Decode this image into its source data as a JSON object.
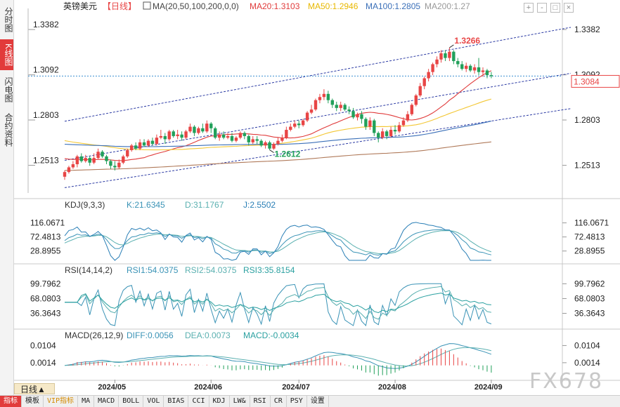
{
  "side_tabs": [
    "分时图",
    "K线图",
    "闪电图",
    "合约资料"
  ],
  "active_side_tab": 1,
  "bottom_tabs": [
    "指标",
    "模板",
    "VIP指标",
    "MA",
    "MACD",
    "BOLL",
    "VOL",
    "BIAS",
    "CCI",
    "KDJ",
    "LW&",
    "RSI",
    "CR",
    "PSY",
    "设置"
  ],
  "period_label": "日线▲",
  "watermark": "FX678",
  "window_controls": [
    "+",
    "-",
    "□",
    "×"
  ],
  "colors": {
    "up": "#e84545",
    "down": "#21a05a",
    "ma20": "#e03a3a",
    "ma50": "#f3c734",
    "ma100": "#3a6fb8",
    "ma200": "#b07a5a",
    "channel": "#2b3aa3",
    "kdj_k": "#3a93b6",
    "kdj_d": "#5ab0b0",
    "kdj_j": "#2a7fb6",
    "rsi1": "#3a93b6",
    "rsi2": "#5ab0b0",
    "rsi3": "#2aa0a0"
  },
  "chart_data": [
    {
      "type": "candlestick",
      "title": "英镑美元",
      "period": "【日线】",
      "legend": [
        {
          "label": "MA(20,50,100,200,0,0)",
          "color": "#444444"
        },
        {
          "label": "MA20:1.3103",
          "color": "#e03a3a"
        },
        {
          "label": "MA50:1.2946",
          "color": "#e8b800"
        },
        {
          "label": "MA100:1.2805",
          "color": "#3a6fb8"
        },
        {
          "label": "MA200:1.27",
          "color": "#999999"
        }
      ],
      "y_ticks": [
        "1.3382",
        "1.3092",
        "1.2803",
        "1.2513"
      ],
      "ylim": [
        1.2336,
        1.3526
      ],
      "x_ticks": [
        {
          "index": 12,
          "label": "2024/05"
        },
        {
          "index": 35,
          "label": "2024/06"
        },
        {
          "index": 56,
          "label": "2024/07"
        },
        {
          "index": 79,
          "label": "2024/08"
        },
        {
          "index": 102,
          "label": "2024/09"
        }
      ],
      "current_price": "1.3084",
      "current_value": 1.3084,
      "annotations": [
        {
          "text": "1.3266",
          "index": 92,
          "value": 1.3266
        },
        {
          "text": "1.2612",
          "index": 49,
          "value": 1.2612
        }
      ],
      "candles": [
        [
          1.244,
          1.247,
          1.242,
          1.248
        ],
        [
          1.247,
          1.25,
          1.246,
          1.251
        ],
        [
          1.25,
          1.252,
          1.249,
          1.254
        ],
        [
          1.252,
          1.257,
          1.25,
          1.258
        ],
        [
          1.257,
          1.254,
          1.253,
          1.259
        ],
        [
          1.254,
          1.256,
          1.253,
          1.258
        ],
        [
          1.256,
          1.253,
          1.251,
          1.257
        ],
        [
          1.253,
          1.256,
          1.252,
          1.259
        ],
        [
          1.256,
          1.26,
          1.255,
          1.262
        ],
        [
          1.26,
          1.257,
          1.256,
          1.261
        ],
        [
          1.257,
          1.254,
          1.252,
          1.258
        ],
        [
          1.254,
          1.251,
          1.249,
          1.255
        ],
        [
          1.251,
          1.25,
          1.248,
          1.254
        ],
        [
          1.25,
          1.253,
          1.249,
          1.255
        ],
        [
          1.253,
          1.257,
          1.252,
          1.258
        ],
        [
          1.257,
          1.261,
          1.256,
          1.262
        ],
        [
          1.261,
          1.264,
          1.26,
          1.265
        ],
        [
          1.264,
          1.262,
          1.261,
          1.266
        ],
        [
          1.262,
          1.266,
          1.261,
          1.268
        ],
        [
          1.266,
          1.264,
          1.263,
          1.268
        ],
        [
          1.264,
          1.267,
          1.263,
          1.268
        ],
        [
          1.267,
          1.265,
          1.264,
          1.269
        ],
        [
          1.265,
          1.269,
          1.264,
          1.271
        ],
        [
          1.269,
          1.27,
          1.268,
          1.274
        ],
        [
          1.27,
          1.268,
          1.265,
          1.272
        ],
        [
          1.268,
          1.273,
          1.267,
          1.274
        ],
        [
          1.273,
          1.27,
          1.269,
          1.274
        ],
        [
          1.27,
          1.271,
          1.268,
          1.274
        ],
        [
          1.271,
          1.269,
          1.267,
          1.273
        ],
        [
          1.269,
          1.273,
          1.268,
          1.274
        ],
        [
          1.273,
          1.276,
          1.272,
          1.278
        ],
        [
          1.276,
          1.272,
          1.27,
          1.277
        ],
        [
          1.272,
          1.275,
          1.271,
          1.276
        ],
        [
          1.275,
          1.273,
          1.272,
          1.278
        ],
        [
          1.273,
          1.278,
          1.272,
          1.28
        ],
        [
          1.278,
          1.275,
          1.272,
          1.279
        ],
        [
          1.275,
          1.269,
          1.268,
          1.276
        ],
        [
          1.269,
          1.271,
          1.267,
          1.273
        ],
        [
          1.271,
          1.269,
          1.268,
          1.273
        ],
        [
          1.269,
          1.27,
          1.268,
          1.272
        ],
        [
          1.27,
          1.267,
          1.266,
          1.272
        ],
        [
          1.267,
          1.269,
          1.266,
          1.27
        ],
        [
          1.269,
          1.272,
          1.268,
          1.273
        ],
        [
          1.272,
          1.27,
          1.268,
          1.273
        ],
        [
          1.27,
          1.266,
          1.264,
          1.271
        ],
        [
          1.266,
          1.268,
          1.265,
          1.27
        ],
        [
          1.268,
          1.267,
          1.265,
          1.27
        ],
        [
          1.267,
          1.264,
          1.263,
          1.268
        ],
        [
          1.264,
          1.266,
          1.262,
          1.267
        ],
        [
          1.266,
          1.262,
          1.2612,
          1.267
        ],
        [
          1.262,
          1.265,
          1.2612,
          1.266
        ],
        [
          1.265,
          1.267,
          1.264,
          1.269
        ],
        [
          1.267,
          1.269,
          1.266,
          1.271
        ],
        [
          1.269,
          1.274,
          1.268,
          1.276
        ],
        [
          1.274,
          1.276,
          1.273,
          1.278
        ],
        [
          1.276,
          1.278,
          1.275,
          1.28
        ],
        [
          1.278,
          1.277,
          1.275,
          1.28
        ],
        [
          1.277,
          1.28,
          1.276,
          1.281
        ],
        [
          1.28,
          1.285,
          1.279,
          1.286
        ],
        [
          1.285,
          1.287,
          1.284,
          1.29
        ],
        [
          1.287,
          1.293,
          1.286,
          1.294
        ],
        [
          1.293,
          1.295,
          1.291,
          1.297
        ],
        [
          1.295,
          1.297,
          1.293,
          1.3
        ],
        [
          1.297,
          1.293,
          1.291,
          1.299
        ],
        [
          1.293,
          1.29,
          1.288,
          1.294
        ],
        [
          1.29,
          1.288,
          1.286,
          1.292
        ],
        [
          1.288,
          1.29,
          1.286,
          1.292
        ],
        [
          1.29,
          1.287,
          1.286,
          1.291
        ],
        [
          1.287,
          1.286,
          1.284,
          1.289
        ],
        [
          1.286,
          1.282,
          1.281,
          1.288
        ],
        [
          1.282,
          1.284,
          1.28,
          1.285
        ],
        [
          1.284,
          1.281,
          1.278,
          1.286
        ],
        [
          1.281,
          1.276,
          1.274,
          1.282
        ],
        [
          1.276,
          1.28,
          1.274,
          1.282
        ],
        [
          1.28,
          1.272,
          1.27,
          1.281
        ],
        [
          1.272,
          1.269,
          1.266,
          1.273
        ],
        [
          1.269,
          1.273,
          1.268,
          1.275
        ],
        [
          1.273,
          1.27,
          1.268,
          1.274
        ],
        [
          1.27,
          1.274,
          1.269,
          1.276
        ],
        [
          1.274,
          1.273,
          1.271,
          1.277
        ],
        [
          1.273,
          1.277,
          1.272,
          1.279
        ],
        [
          1.277,
          1.28,
          1.276,
          1.282
        ],
        [
          1.28,
          1.284,
          1.279,
          1.286
        ],
        [
          1.284,
          1.29,
          1.283,
          1.291
        ],
        [
          1.29,
          1.296,
          1.289,
          1.297
        ],
        [
          1.296,
          1.302,
          1.295,
          1.304
        ],
        [
          1.302,
          1.307,
          1.3,
          1.308
        ],
        [
          1.307,
          1.311,
          1.305,
          1.313
        ],
        [
          1.311,
          1.316,
          1.309,
          1.317
        ],
        [
          1.316,
          1.319,
          1.314,
          1.321
        ],
        [
          1.319,
          1.323,
          1.317,
          1.325
        ],
        [
          1.323,
          1.32,
          1.318,
          1.325
        ],
        [
          1.32,
          1.324,
          1.318,
          1.3266
        ],
        [
          1.324,
          1.318,
          1.316,
          1.325
        ],
        [
          1.318,
          1.316,
          1.314,
          1.32
        ],
        [
          1.316,
          1.313,
          1.312,
          1.318
        ],
        [
          1.313,
          1.315,
          1.311,
          1.317
        ],
        [
          1.315,
          1.312,
          1.311,
          1.316
        ],
        [
          1.312,
          1.314,
          1.31,
          1.316
        ],
        [
          1.314,
          1.311,
          1.309,
          1.32
        ],
        [
          1.311,
          1.312,
          1.308,
          1.314
        ],
        [
          1.312,
          1.309,
          1.307,
          1.313
        ],
        [
          1.309,
          1.3084,
          1.307,
          1.311
        ]
      ]
    },
    {
      "type": "line",
      "title": "KDJ(9,3,3)",
      "legend": [
        {
          "label": "KDJ(9,3,3)",
          "color": "#333333"
        },
        {
          "label": "K:21.6345",
          "color": "#3a93b6"
        },
        {
          "label": "D:31.1767",
          "color": "#5ab0b0"
        },
        {
          "label": "J:2.5502",
          "color": "#2a7fb6"
        }
      ],
      "y_ticks": [
        "116.0671",
        "72.4813",
        "28.8955"
      ],
      "ylim": [
        0,
        150
      ]
    },
    {
      "type": "line",
      "title": "RSI(14,14,2)",
      "legend": [
        {
          "label": "RSI(14,14,2)",
          "color": "#333333"
        },
        {
          "label": "RSI1:54.0375",
          "color": "#3a93b6"
        },
        {
          "label": "RSI2:54.0375",
          "color": "#5ab0b0"
        },
        {
          "label": "RSI3:35.8154",
          "color": "#2aa0a0"
        }
      ],
      "y_ticks": [
        "99.7962",
        "68.0803",
        "36.3643"
      ],
      "ylim": [
        10,
        120
      ]
    },
    {
      "type": "bar",
      "title": "MACD(26,12,9)",
      "legend": [
        {
          "label": "MACD(26,12,9)",
          "color": "#333333"
        },
        {
          "label": "DIFF:0.0056",
          "color": "#3a93b6"
        },
        {
          "label": "DEA:0.0073",
          "color": "#5ab0b0"
        },
        {
          "label": "MACD:-0.0034",
          "color": "#2aa0a0"
        }
      ],
      "y_ticks": [
        "0.0104",
        "0.0014"
      ],
      "ylim": [
        -0.006,
        0.0135
      ]
    }
  ]
}
